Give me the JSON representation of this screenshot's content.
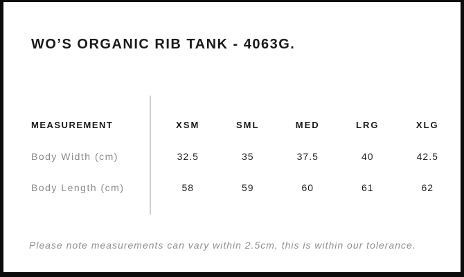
{
  "title": "WO’S ORGANIC RIB TANK - 4063G.",
  "table": {
    "label_header": "MEASUREMENT",
    "size_headers": [
      "XSM",
      "SML",
      "MED",
      "LRG",
      "XLG"
    ],
    "rows": [
      {
        "label": "Body Width (cm)",
        "values": [
          "32.5",
          "35",
          "37.5",
          "40",
          "42.5"
        ]
      },
      {
        "label": "Body Length (cm)",
        "values": [
          "58",
          "59",
          "60",
          "61",
          "62"
        ]
      }
    ]
  },
  "note": "Please note measurements can vary within 2.5cm, this is within our tolerance.",
  "colors": {
    "border": "#0c0c0c",
    "heading_text": "#1a1a1a",
    "row_label_text": "#8a8a8a",
    "value_text": "#1f1f1f",
    "note_text": "#8f8f8f",
    "divider": "#cfcfcf",
    "background": "#ffffff"
  }
}
